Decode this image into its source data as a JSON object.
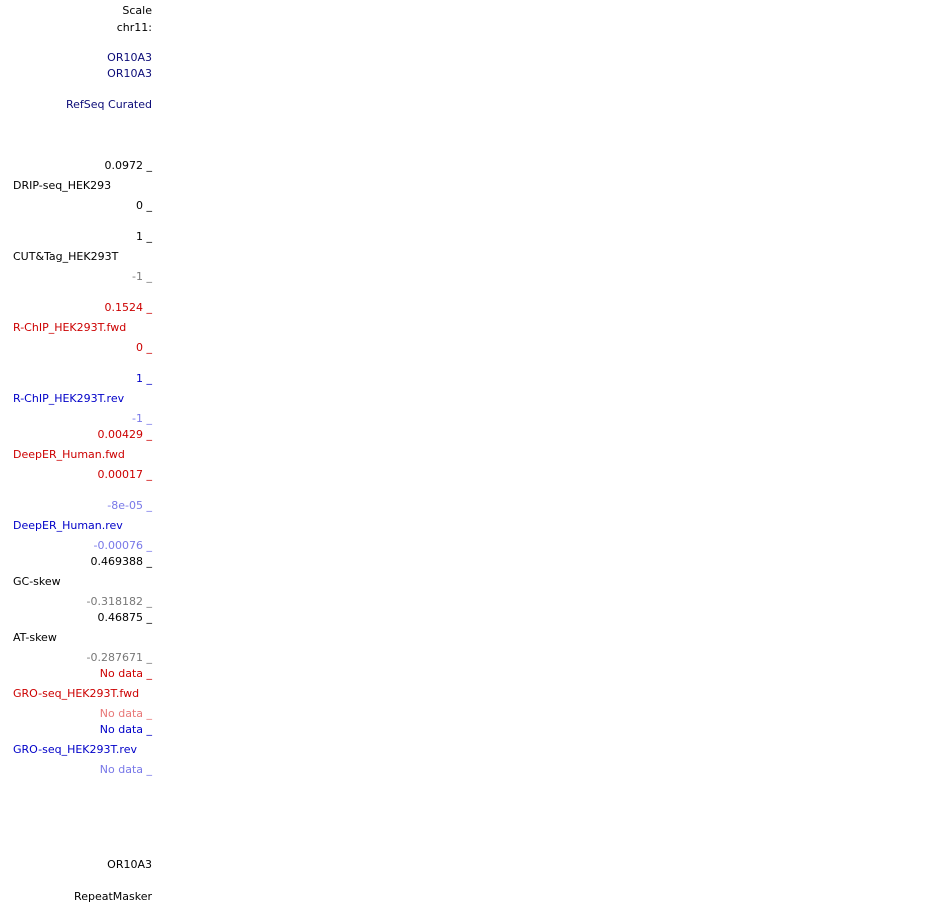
{
  "scale": {
    "label": "Scale",
    "chrom": "chr11:"
  },
  "genes": {
    "name1": "OR10A3",
    "name2": "OR10A3"
  },
  "refseq": {
    "label": "RefSeq Curated"
  },
  "tracks": {
    "drip": {
      "max": "0.0972 _",
      "name": "DRIP-seq_HEK293",
      "min": "0 _"
    },
    "cuttag": {
      "max": "1 _",
      "name": "CUT&Tag_HEK293T",
      "min": "-1 _"
    },
    "rchip_fwd": {
      "max": "0.1524 _",
      "name": "R-ChIP_HEK293T.fwd",
      "min": "0 _"
    },
    "rchip_rev": {
      "max": "1 _",
      "name": "R-ChIP_HEK293T.rev",
      "min": "-1 _"
    },
    "deeper_fwd": {
      "max": "0.00429 _",
      "name": "DeepER_Human.fwd",
      "min": "0.00017 _"
    },
    "deeper_rev": {
      "max": "-8e-05 _",
      "name": "DeepER_Human.rev",
      "min": "-0.00076 _"
    },
    "gcskew": {
      "max": "0.469388 _",
      "name": "GC-skew",
      "min": "-0.318182 _"
    },
    "atskew": {
      "max": "0.46875 _",
      "name": "AT-skew",
      "min": "-0.287671 _"
    },
    "gro_fwd": {
      "max": "No data _",
      "name": "GRO-seq_HEK293T.fwd",
      "min": "No data _"
    },
    "gro_rev": {
      "max": "No data _",
      "name": "GRO-seq_HEK293T.rev",
      "min": "No data _"
    }
  },
  "bottom": {
    "gene": "OR10A3",
    "repeat": "RepeatMasker"
  }
}
